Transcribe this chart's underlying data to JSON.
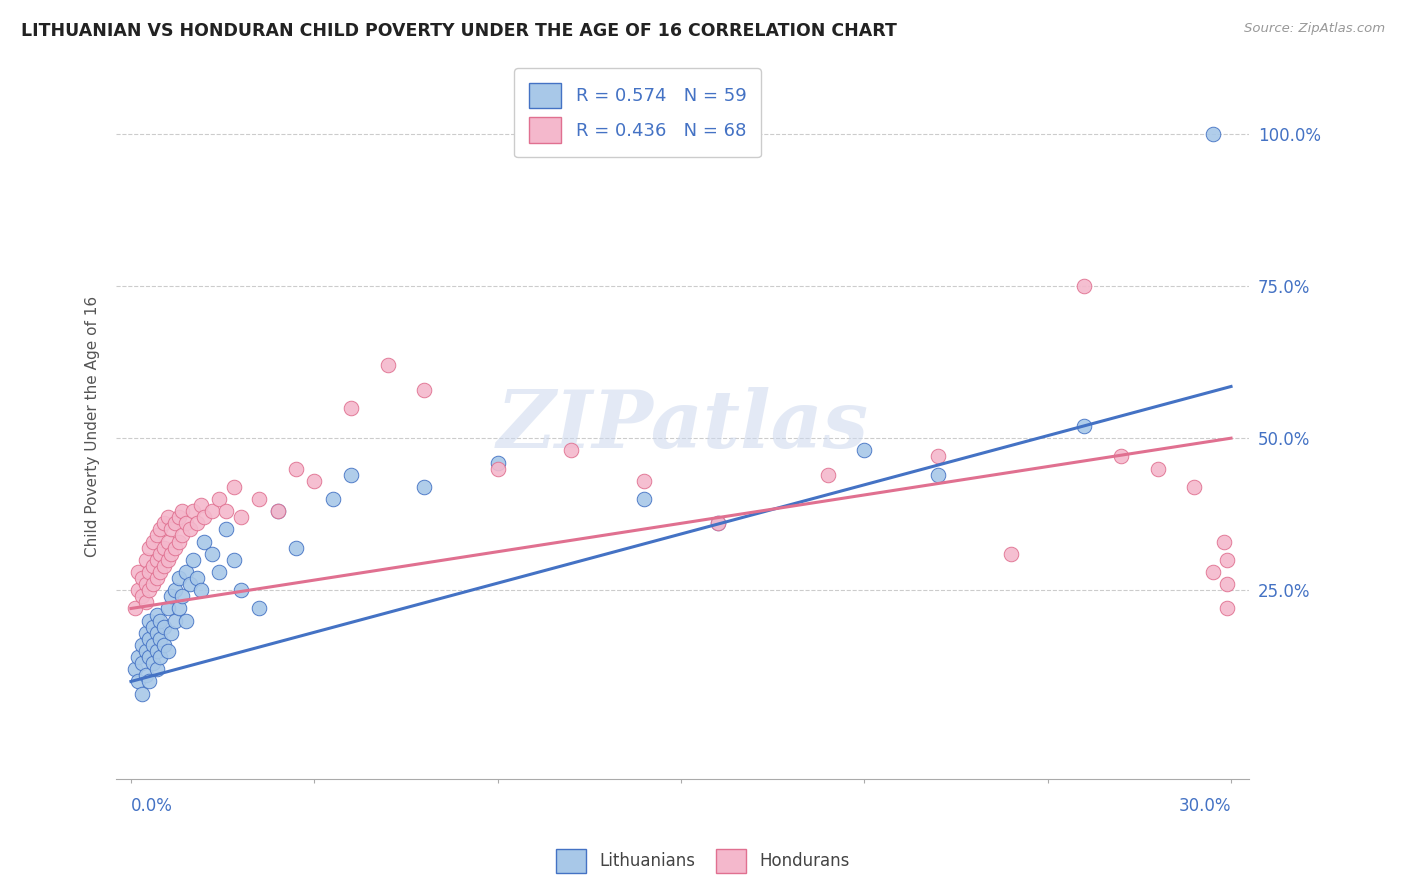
{
  "title": "LITHUANIAN VS HONDURAN CHILD POVERTY UNDER THE AGE OF 16 CORRELATION CHART",
  "source": "Source: ZipAtlas.com",
  "ylabel": "Child Poverty Under the Age of 16",
  "blue_color": "#a8c8e8",
  "pink_color": "#f4b8cc",
  "blue_line_color": "#4472c4",
  "pink_line_color": "#e07090",
  "blue_R": 0.574,
  "blue_N": 59,
  "pink_R": 0.436,
  "pink_N": 68,
  "legend_label_blue": "Lithuanians",
  "legend_label_pink": "Hondurans",
  "watermark": "ZIPatlas",
  "blue_line": [
    0.0,
    0.1,
    0.3,
    0.585
  ],
  "pink_line": [
    0.0,
    0.22,
    0.3,
    0.5
  ],
  "blue_x": [
    0.001,
    0.002,
    0.002,
    0.003,
    0.003,
    0.003,
    0.004,
    0.004,
    0.004,
    0.005,
    0.005,
    0.005,
    0.005,
    0.006,
    0.006,
    0.006,
    0.007,
    0.007,
    0.007,
    0.007,
    0.008,
    0.008,
    0.008,
    0.009,
    0.009,
    0.01,
    0.01,
    0.011,
    0.011,
    0.012,
    0.012,
    0.013,
    0.013,
    0.014,
    0.015,
    0.015,
    0.016,
    0.017,
    0.018,
    0.019,
    0.02,
    0.022,
    0.024,
    0.026,
    0.028,
    0.03,
    0.035,
    0.04,
    0.045,
    0.055,
    0.06,
    0.08,
    0.1,
    0.14,
    0.16,
    0.2,
    0.22,
    0.26,
    0.295
  ],
  "blue_y": [
    0.12,
    0.1,
    0.14,
    0.08,
    0.13,
    0.16,
    0.11,
    0.15,
    0.18,
    0.1,
    0.14,
    0.17,
    0.2,
    0.13,
    0.16,
    0.19,
    0.12,
    0.15,
    0.18,
    0.21,
    0.14,
    0.17,
    0.2,
    0.16,
    0.19,
    0.15,
    0.22,
    0.18,
    0.24,
    0.2,
    0.25,
    0.22,
    0.27,
    0.24,
    0.2,
    0.28,
    0.26,
    0.3,
    0.27,
    0.25,
    0.33,
    0.31,
    0.28,
    0.35,
    0.3,
    0.25,
    0.22,
    0.38,
    0.32,
    0.4,
    0.44,
    0.42,
    0.46,
    0.4,
    0.36,
    0.48,
    0.44,
    0.52,
    1.0
  ],
  "pink_x": [
    0.001,
    0.002,
    0.002,
    0.003,
    0.003,
    0.004,
    0.004,
    0.004,
    0.005,
    0.005,
    0.005,
    0.006,
    0.006,
    0.006,
    0.007,
    0.007,
    0.007,
    0.008,
    0.008,
    0.008,
    0.009,
    0.009,
    0.009,
    0.01,
    0.01,
    0.01,
    0.011,
    0.011,
    0.012,
    0.012,
    0.013,
    0.013,
    0.014,
    0.014,
    0.015,
    0.016,
    0.017,
    0.018,
    0.019,
    0.02,
    0.022,
    0.024,
    0.026,
    0.028,
    0.03,
    0.035,
    0.04,
    0.045,
    0.05,
    0.06,
    0.07,
    0.08,
    0.1,
    0.12,
    0.14,
    0.16,
    0.19,
    0.22,
    0.24,
    0.26,
    0.27,
    0.28,
    0.29,
    0.295,
    0.298,
    0.299,
    0.299,
    0.299
  ],
  "pink_y": [
    0.22,
    0.25,
    0.28,
    0.24,
    0.27,
    0.23,
    0.26,
    0.3,
    0.25,
    0.28,
    0.32,
    0.26,
    0.29,
    0.33,
    0.27,
    0.3,
    0.34,
    0.28,
    0.31,
    0.35,
    0.29,
    0.32,
    0.36,
    0.3,
    0.33,
    0.37,
    0.31,
    0.35,
    0.32,
    0.36,
    0.33,
    0.37,
    0.34,
    0.38,
    0.36,
    0.35,
    0.38,
    0.36,
    0.39,
    0.37,
    0.38,
    0.4,
    0.38,
    0.42,
    0.37,
    0.4,
    0.38,
    0.45,
    0.43,
    0.55,
    0.62,
    0.58,
    0.45,
    0.48,
    0.43,
    0.36,
    0.44,
    0.47,
    0.31,
    0.75,
    0.47,
    0.45,
    0.42,
    0.28,
    0.33,
    0.3,
    0.26,
    0.22
  ]
}
